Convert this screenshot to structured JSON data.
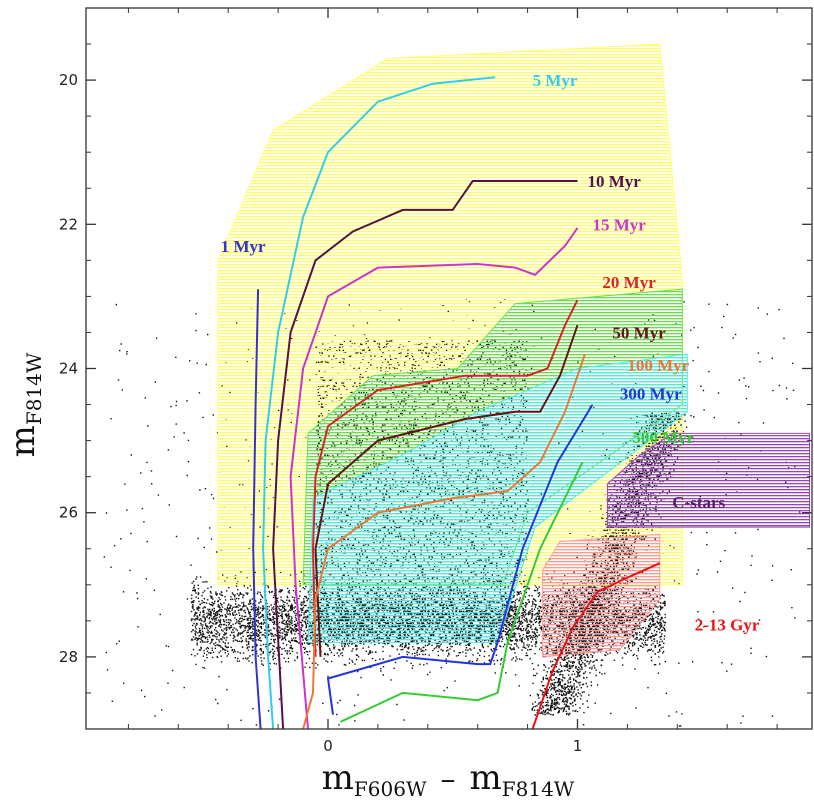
{
  "chart_data": {
    "type": "scatter",
    "title": "",
    "xlabel": {
      "main": "m",
      "sub1": "F606W",
      "minus": "–",
      "sub2": "F814W"
    },
    "ylabel": {
      "main": "m",
      "sub": "F814W"
    },
    "xlim": [
      -0.97,
      1.94
    ],
    "ylim": [
      29.0,
      19.0
    ],
    "grid": false,
    "x_ticks": [
      0,
      1
    ],
    "x_tick_labels": [
      "0",
      "1"
    ],
    "y_ticks": [
      20,
      22,
      24,
      26,
      28
    ],
    "y_tick_labels": [
      "20",
      "22",
      "24",
      "26",
      "28"
    ],
    "regions": [
      {
        "name": "young-envelope",
        "color": "#ffff66",
        "points": [
          [
            -0.44,
            27.0
          ],
          [
            -0.44,
            22.5
          ],
          [
            -0.22,
            20.7
          ],
          [
            0.24,
            19.7
          ],
          [
            1.33,
            19.5
          ],
          [
            1.42,
            22.8
          ],
          [
            1.42,
            27.0
          ]
        ]
      },
      {
        "name": "20-50-Myr-region",
        "color": "#66dd55",
        "points": [
          [
            -0.1,
            27.0
          ],
          [
            -0.08,
            24.9
          ],
          [
            0.18,
            24.1
          ],
          [
            0.52,
            24.0
          ],
          [
            0.75,
            23.1
          ],
          [
            1.42,
            22.9
          ],
          [
            1.42,
            24.5
          ],
          [
            0.8,
            26.0
          ],
          [
            0.7,
            27.0
          ]
        ]
      },
      {
        "name": "100-300-Myr-region",
        "color": "#55e8e8",
        "points": [
          [
            -0.08,
            27.8
          ],
          [
            -0.06,
            25.8
          ],
          [
            0.3,
            25.2
          ],
          [
            0.6,
            24.6
          ],
          [
            1.0,
            24.0
          ],
          [
            1.44,
            23.8
          ],
          [
            1.44,
            24.6
          ],
          [
            0.83,
            26.2
          ],
          [
            0.68,
            27.8
          ]
        ]
      },
      {
        "name": "2-13-Gyr-region",
        "color": "#ff9999",
        "points": [
          [
            0.86,
            26.8
          ],
          [
            0.93,
            26.4
          ],
          [
            1.33,
            26.3
          ],
          [
            1.33,
            27.2
          ],
          [
            1.17,
            27.9
          ],
          [
            0.86,
            28.0
          ]
        ]
      },
      {
        "name": "c-stars-region",
        "color": "#9944bb",
        "points": [
          [
            1.12,
            25.6
          ],
          [
            1.25,
            25.2
          ],
          [
            1.38,
            24.9
          ],
          [
            1.93,
            24.9
          ],
          [
            1.93,
            26.2
          ],
          [
            1.12,
            26.2
          ]
        ]
      }
    ],
    "series": [
      {
        "name": "1 Myr",
        "color": "#3333cc",
        "label_pos": [
          -0.43,
          22.3
        ],
        "points": [
          [
            -0.28,
            22.9
          ],
          [
            -0.29,
            24.5
          ],
          [
            -0.3,
            26.5
          ],
          [
            -0.29,
            28.0
          ],
          [
            -0.27,
            29.0
          ]
        ]
      },
      {
        "name": "5 Myr",
        "color": "#33ccee",
        "label_pos": [
          0.82,
          20.0
        ],
        "points": [
          [
            0.67,
            19.96
          ],
          [
            0.42,
            20.05
          ],
          [
            0.2,
            20.3
          ],
          [
            0.0,
            21.0
          ],
          [
            -0.1,
            21.9
          ],
          [
            -0.2,
            23.5
          ],
          [
            -0.25,
            25.0
          ],
          [
            -0.26,
            26.5
          ],
          [
            -0.24,
            28.0
          ],
          [
            -0.22,
            29.0
          ]
        ]
      },
      {
        "name": "10 Myr",
        "color": "#551144",
        "label_pos": [
          1.04,
          21.4
        ],
        "points": [
          [
            1.0,
            21.4
          ],
          [
            0.58,
            21.4
          ],
          [
            0.5,
            21.8
          ],
          [
            0.3,
            21.8
          ],
          [
            0.1,
            22.1
          ],
          [
            -0.05,
            22.5
          ],
          [
            -0.15,
            23.5
          ],
          [
            -0.2,
            25.0
          ],
          [
            -0.22,
            26.5
          ],
          [
            -0.18,
            29.0
          ]
        ]
      },
      {
        "name": "15 Myr",
        "color": "#cc33cc",
        "label_pos": [
          1.06,
          22.0
        ],
        "points": [
          [
            1.0,
            22.05
          ],
          [
            0.95,
            22.3
          ],
          [
            0.83,
            22.7
          ],
          [
            0.75,
            22.6
          ],
          [
            0.6,
            22.55
          ],
          [
            0.2,
            22.6
          ],
          [
            0.0,
            23.0
          ],
          [
            -0.1,
            24.0
          ],
          [
            -0.15,
            25.5
          ],
          [
            -0.13,
            27.0
          ],
          [
            -0.08,
            29.0
          ]
        ]
      },
      {
        "name": "20 Myr",
        "color": "#dd2222",
        "label_pos": [
          1.1,
          22.8
        ],
        "points": [
          [
            1.0,
            23.05
          ],
          [
            0.95,
            23.4
          ],
          [
            0.88,
            24.0
          ],
          [
            0.8,
            24.1
          ],
          [
            0.55,
            24.1
          ],
          [
            0.2,
            24.3
          ],
          [
            0.0,
            24.8
          ],
          [
            -0.05,
            25.5
          ],
          [
            -0.06,
            26.5
          ],
          [
            -0.05,
            28.0
          ]
        ]
      },
      {
        "name": "50 Myr",
        "color": "#661111",
        "label_pos": [
          1.14,
          23.5
        ],
        "points": [
          [
            1.0,
            23.4
          ],
          [
            0.93,
            24.1
          ],
          [
            0.85,
            24.6
          ],
          [
            0.75,
            24.6
          ],
          [
            0.55,
            24.7
          ],
          [
            0.2,
            25.0
          ],
          [
            0.0,
            25.6
          ],
          [
            -0.05,
            26.5
          ],
          [
            -0.03,
            28.0
          ]
        ]
      },
      {
        "name": "100 Myr",
        "color": "#ee7733",
        "label_pos": [
          1.2,
          23.95
        ],
        "points": [
          [
            1.03,
            23.8
          ],
          [
            0.95,
            24.6
          ],
          [
            0.85,
            25.3
          ],
          [
            0.72,
            25.7
          ],
          [
            0.5,
            25.8
          ],
          [
            0.2,
            26.0
          ],
          [
            0.0,
            26.5
          ],
          [
            -0.05,
            27.2
          ],
          [
            -0.06,
            28.5
          ],
          [
            -0.1,
            29.0
          ]
        ]
      },
      {
        "name": "300 Myr",
        "color": "#2233dd",
        "label_pos": [
          1.17,
          24.35
        ],
        "points": [
          [
            1.06,
            24.5
          ],
          [
            0.92,
            25.3
          ],
          [
            0.78,
            26.5
          ],
          [
            0.68,
            27.8
          ],
          [
            0.65,
            28.1
          ],
          [
            0.6,
            28.1
          ],
          [
            0.3,
            28.0
          ],
          [
            0.0,
            28.3
          ],
          [
            0.02,
            28.8
          ]
        ]
      },
      {
        "name": "500 Myr",
        "color": "#33cc33",
        "label_pos": [
          1.22,
          24.95
        ],
        "points": [
          [
            1.02,
            25.3
          ],
          [
            0.85,
            26.5
          ],
          [
            0.72,
            27.8
          ],
          [
            0.68,
            28.5
          ],
          [
            0.6,
            28.6
          ],
          [
            0.3,
            28.5
          ],
          [
            0.05,
            28.9
          ]
        ]
      },
      {
        "name": "2-13 Gyr",
        "color": "#ee1111",
        "label_pos": [
          1.47,
          27.55
        ],
        "points": [
          [
            1.33,
            26.7
          ],
          [
            1.2,
            26.9
          ],
          [
            1.08,
            27.1
          ],
          [
            0.98,
            27.6
          ],
          [
            0.9,
            28.2
          ],
          [
            0.82,
            29.0
          ]
        ]
      },
      {
        "name": "C-stars",
        "color": "#552266",
        "label_pos": [
          1.38,
          25.85
        ],
        "points": []
      }
    ]
  }
}
